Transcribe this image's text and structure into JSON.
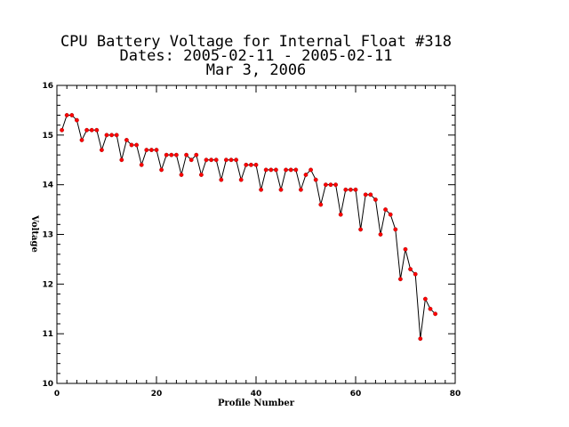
{
  "chart_data": {
    "type": "line",
    "title_lines": [
      "CPU Battery Voltage for Internal Float #318",
      "Dates:  2005-02-11 -  2005-02-11",
      "Mar  3, 2006"
    ],
    "xlabel": "Profile Number",
    "ylabel": "Voltage",
    "xlim": [
      0,
      80
    ],
    "ylim": [
      10,
      16
    ],
    "x_major_ticks": [
      0,
      20,
      40,
      60,
      80
    ],
    "y_major_ticks": [
      10,
      11,
      12,
      13,
      14,
      15,
      16
    ],
    "x_tick_labels": [
      "0",
      "20",
      "40",
      "60",
      "80"
    ],
    "y_tick_labels": [
      "10",
      "11",
      "12",
      "13",
      "14",
      "15",
      "16"
    ],
    "grid": false,
    "colors": {
      "line": "#000000",
      "marker": "#ff0000",
      "axes": "#000000"
    },
    "series": [
      {
        "x": [
          1,
          2,
          3,
          4,
          5,
          6,
          7,
          8,
          9,
          10,
          11,
          12,
          13,
          14,
          15,
          16,
          17,
          18,
          19,
          20,
          21,
          22,
          23,
          24,
          25,
          26,
          27,
          28,
          29,
          30,
          31,
          32,
          33,
          34,
          35,
          36,
          37,
          38,
          39,
          40,
          41,
          42,
          43,
          44,
          45,
          46,
          47,
          48,
          49,
          50,
          51,
          52,
          53,
          54,
          55,
          56,
          57,
          58,
          59,
          60,
          61,
          62,
          63,
          64,
          65,
          66,
          67,
          68,
          69,
          70,
          71,
          72,
          73,
          74,
          75,
          76
        ],
        "y": [
          15.1,
          15.4,
          15.4,
          15.3,
          14.9,
          15.1,
          15.1,
          15.1,
          14.7,
          15.0,
          15.0,
          15.0,
          14.5,
          14.9,
          14.8,
          14.8,
          14.4,
          14.7,
          14.7,
          14.7,
          14.3,
          14.6,
          14.6,
          14.6,
          14.2,
          14.6,
          14.5,
          14.6,
          14.2,
          14.5,
          14.5,
          14.5,
          14.1,
          14.5,
          14.5,
          14.5,
          14.1,
          14.4,
          14.4,
          14.4,
          13.9,
          14.3,
          14.3,
          14.3,
          13.9,
          14.3,
          14.3,
          14.3,
          13.9,
          14.2,
          14.3,
          14.1,
          13.6,
          14.0,
          14.0,
          14.0,
          13.4,
          13.9,
          13.9,
          13.9,
          13.1,
          13.8,
          13.8,
          13.7,
          13.0,
          13.5,
          13.4,
          13.1,
          12.1,
          12.7,
          12.3,
          12.2,
          10.9,
          11.7,
          11.5,
          11.4
        ]
      }
    ]
  }
}
